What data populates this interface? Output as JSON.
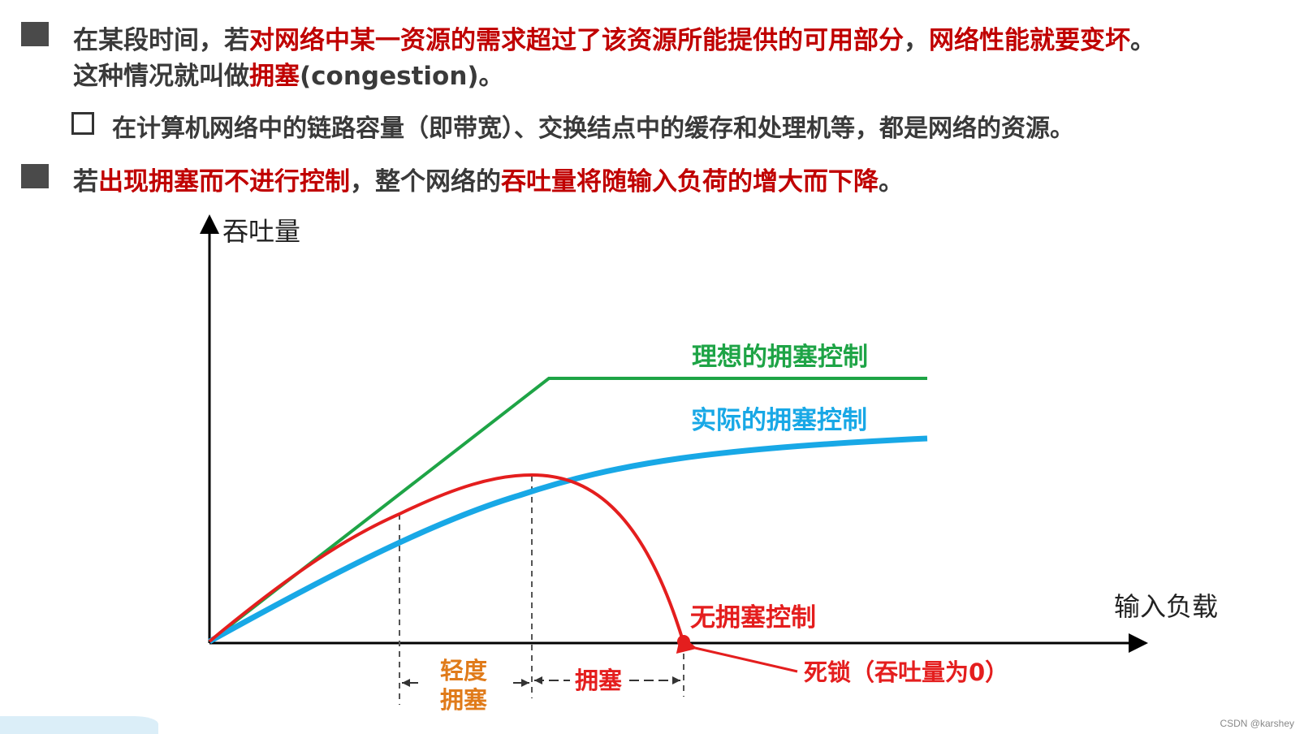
{
  "bullets": {
    "b1": {
      "p1": "在某段时间，若",
      "p2": "对网络中某一资源的需求超过了该资源所能提供的可用部分",
      "p3": "，",
      "p4": "网络性能就要变坏",
      "p5": "。",
      "p6": "这种情况就叫做",
      "p7": "拥塞",
      "p8": "(congestion)。"
    },
    "sub1": "在计算机网络中的链路容量（即带宽）、交换结点中的缓存和处理机等，都是网络的资源。",
    "b2": {
      "p1": "若",
      "p2": "出现拥塞而不进行控制",
      "p3": "，整个网络的",
      "p4": "吞吐量将随输入负荷的增大而下降",
      "p5": "。"
    }
  },
  "chart_data": {
    "type": "line",
    "ylabel": "吞吐量",
    "xlabel": "输入负载",
    "series": [
      {
        "name": "理想的拥塞控制",
        "color": "#1ea446"
      },
      {
        "name": "实际的拥塞控制",
        "color": "#18a8e6"
      },
      {
        "name": "无拥塞控制",
        "color": "#e41e1e"
      }
    ],
    "annotations": {
      "deadlock": "死锁（吞吐量为0）",
      "light_line1": "轻度",
      "light_line2": "拥塞",
      "congestion": "拥塞"
    }
  },
  "watermark": "CSDN @karshey"
}
